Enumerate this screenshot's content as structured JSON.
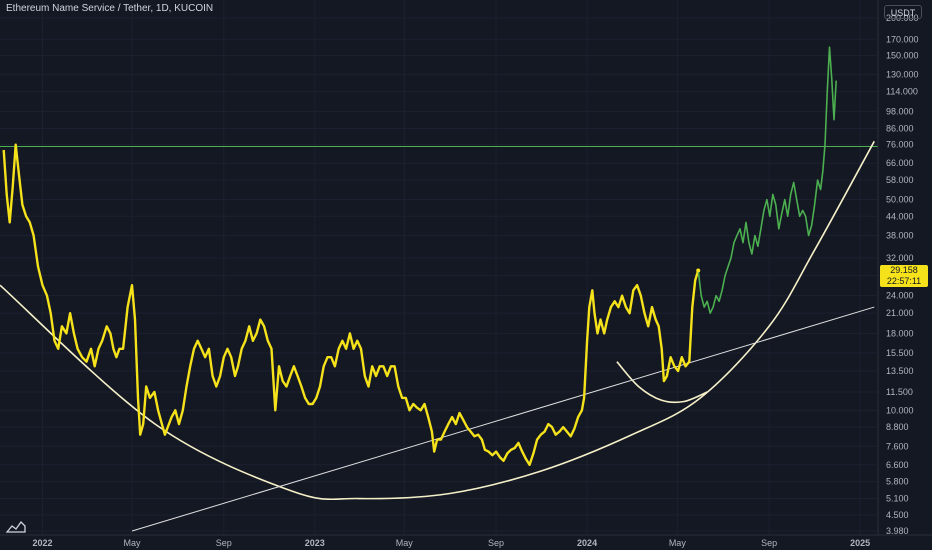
{
  "header": {
    "title": "Ethereum Name Service / Tether, 1D, KUCOIN",
    "currency": "USDT"
  },
  "price_tag": {
    "price": "29.158",
    "countdown": "22:57:11"
  },
  "colors": {
    "background": "#141823",
    "yellow_series": "#f5e21b",
    "green_series": "#4caf50",
    "resistance": "#4caf50",
    "curve": "#f5f0c8",
    "trendline": "#e0e0e0"
  },
  "chart_data": {
    "type": "line",
    "scale": "log",
    "ylim": [
      3.98,
      200
    ],
    "xlim": [
      "2021-11-05",
      "2025-01-25"
    ],
    "y_ticks": [
      "200.000",
      "170.000",
      "150.000",
      "130.000",
      "114.000",
      "98.000",
      "86.000",
      "76.000",
      "66.000",
      "58.000",
      "50.000",
      "44.000",
      "38.000",
      "32.000",
      "28.000",
      "24.000",
      "21.000",
      "18.000",
      "15.500",
      "13.500",
      "11.500",
      "10.000",
      "8.800",
      "7.600",
      "6.600",
      "5.800",
      "5.100",
      "4.500",
      "3.980"
    ],
    "x_ticks": [
      {
        "date": "2022-01-01",
        "label": "2022"
      },
      {
        "date": "2022-05-01",
        "label": "May"
      },
      {
        "date": "2022-09-01",
        "label": "Sep"
      },
      {
        "date": "2023-01-01",
        "label": "2023"
      },
      {
        "date": "2023-05-01",
        "label": "May"
      },
      {
        "date": "2023-09-01",
        "label": "Sep"
      },
      {
        "date": "2024-01-01",
        "label": "2024"
      },
      {
        "date": "2024-05-01",
        "label": "May"
      },
      {
        "date": "2024-09-01",
        "label": "Sep"
      },
      {
        "date": "2025-01-01",
        "label": "2025"
      }
    ],
    "series": [
      {
        "color": "#f5e21b",
        "points": [
          [
            "2021-11-10",
            73
          ],
          [
            "2021-11-14",
            52
          ],
          [
            "2021-11-18",
            42
          ],
          [
            "2021-11-22",
            55
          ],
          [
            "2021-11-26",
            76
          ],
          [
            "2021-11-30",
            62
          ],
          [
            "2021-12-05",
            48
          ],
          [
            "2021-12-10",
            44
          ],
          [
            "2021-12-15",
            42
          ],
          [
            "2021-12-20",
            38
          ],
          [
            "2021-12-26",
            30
          ],
          [
            "2022-01-01",
            26
          ],
          [
            "2022-01-07",
            24
          ],
          [
            "2022-01-12",
            21
          ],
          [
            "2022-01-17",
            17
          ],
          [
            "2022-01-22",
            16
          ],
          [
            "2022-01-27",
            19
          ],
          [
            "2022-02-02",
            18
          ],
          [
            "2022-02-07",
            21
          ],
          [
            "2022-02-12",
            18
          ],
          [
            "2022-02-17",
            16
          ],
          [
            "2022-02-23",
            15
          ],
          [
            "2022-03-01",
            14.5
          ],
          [
            "2022-03-07",
            16
          ],
          [
            "2022-03-12",
            14
          ],
          [
            "2022-03-17",
            16
          ],
          [
            "2022-03-22",
            17
          ],
          [
            "2022-03-28",
            19
          ],
          [
            "2022-04-02",
            18
          ],
          [
            "2022-04-06",
            16
          ],
          [
            "2022-04-10",
            15
          ],
          [
            "2022-04-14",
            16
          ],
          [
            "2022-04-19",
            16
          ],
          [
            "2022-04-25",
            22
          ],
          [
            "2022-05-01",
            26
          ],
          [
            "2022-05-05",
            20
          ],
          [
            "2022-05-09",
            11
          ],
          [
            "2022-05-12",
            8.3
          ],
          [
            "2022-05-16",
            9
          ],
          [
            "2022-05-20",
            12
          ],
          [
            "2022-05-25",
            11
          ],
          [
            "2022-05-31",
            11.5
          ],
          [
            "2022-06-05",
            10
          ],
          [
            "2022-06-10",
            9
          ],
          [
            "2022-06-14",
            8.3
          ],
          [
            "2022-06-18",
            8.8
          ],
          [
            "2022-06-23",
            9.5
          ],
          [
            "2022-06-28",
            10
          ],
          [
            "2022-07-03",
            9
          ],
          [
            "2022-07-08",
            10
          ],
          [
            "2022-07-13",
            12
          ],
          [
            "2022-07-18",
            14
          ],
          [
            "2022-07-23",
            16
          ],
          [
            "2022-07-28",
            17
          ],
          [
            "2022-08-02",
            16
          ],
          [
            "2022-08-07",
            15
          ],
          [
            "2022-08-12",
            16
          ],
          [
            "2022-08-17",
            13
          ],
          [
            "2022-08-22",
            12
          ],
          [
            "2022-08-27",
            13
          ],
          [
            "2022-09-01",
            15
          ],
          [
            "2022-09-06",
            16
          ],
          [
            "2022-09-11",
            15
          ],
          [
            "2022-09-16",
            13
          ],
          [
            "2022-09-20",
            14
          ],
          [
            "2022-09-25",
            16
          ],
          [
            "2022-09-30",
            17
          ],
          [
            "2022-10-05",
            19
          ],
          [
            "2022-10-10",
            17
          ],
          [
            "2022-10-15",
            18
          ],
          [
            "2022-10-20",
            20
          ],
          [
            "2022-10-25",
            19
          ],
          [
            "2022-10-30",
            17
          ],
          [
            "2022-11-04",
            16
          ],
          [
            "2022-11-09",
            10
          ],
          [
            "2022-11-14",
            14
          ],
          [
            "2022-11-19",
            12.5
          ],
          [
            "2022-11-24",
            12
          ],
          [
            "2022-11-29",
            13
          ],
          [
            "2022-12-04",
            14
          ],
          [
            "2022-12-09",
            13
          ],
          [
            "2022-12-14",
            12
          ],
          [
            "2022-12-19",
            11
          ],
          [
            "2022-12-24",
            10.5
          ],
          [
            "2022-12-29",
            10.5
          ],
          [
            "2023-01-03",
            11
          ],
          [
            "2023-01-08",
            12
          ],
          [
            "2023-01-13",
            14
          ],
          [
            "2023-01-18",
            15
          ],
          [
            "2023-01-23",
            15
          ],
          [
            "2023-01-28",
            14
          ],
          [
            "2023-02-02",
            16
          ],
          [
            "2023-02-07",
            17
          ],
          [
            "2023-02-12",
            16
          ],
          [
            "2023-02-17",
            18
          ],
          [
            "2023-02-22",
            16
          ],
          [
            "2023-02-27",
            17
          ],
          [
            "2023-03-04",
            16
          ],
          [
            "2023-03-09",
            13
          ],
          [
            "2023-03-14",
            12
          ],
          [
            "2023-03-19",
            14
          ],
          [
            "2023-03-24",
            13
          ],
          [
            "2023-03-29",
            14
          ],
          [
            "2023-04-03",
            14
          ],
          [
            "2023-04-08",
            13
          ],
          [
            "2023-04-13",
            14
          ],
          [
            "2023-04-18",
            14
          ],
          [
            "2023-04-23",
            12
          ],
          [
            "2023-04-28",
            11
          ],
          [
            "2023-05-03",
            11
          ],
          [
            "2023-05-08",
            10
          ],
          [
            "2023-05-13",
            10.5
          ],
          [
            "2023-05-18",
            10.2
          ],
          [
            "2023-05-23",
            10
          ],
          [
            "2023-05-28",
            10.5
          ],
          [
            "2023-06-02",
            9.5
          ],
          [
            "2023-06-07",
            8.5
          ],
          [
            "2023-06-10",
            7.3
          ],
          [
            "2023-06-14",
            8
          ],
          [
            "2023-06-19",
            8
          ],
          [
            "2023-06-24",
            8.5
          ],
          [
            "2023-06-29",
            9
          ],
          [
            "2023-07-04",
            9.5
          ],
          [
            "2023-07-09",
            9
          ],
          [
            "2023-07-14",
            9.8
          ],
          [
            "2023-07-19",
            9.3
          ],
          [
            "2023-07-24",
            8.8
          ],
          [
            "2023-07-29",
            8.5
          ],
          [
            "2023-08-03",
            8.2
          ],
          [
            "2023-08-08",
            8.3
          ],
          [
            "2023-08-13",
            8
          ],
          [
            "2023-08-17",
            7.4
          ],
          [
            "2023-08-22",
            7.3
          ],
          [
            "2023-08-27",
            7.1
          ],
          [
            "2023-09-01",
            7.3
          ],
          [
            "2023-09-06",
            7.0
          ],
          [
            "2023-09-11",
            6.8
          ],
          [
            "2023-09-16",
            7.2
          ],
          [
            "2023-09-21",
            7.4
          ],
          [
            "2023-09-26",
            7.5
          ],
          [
            "2023-10-01",
            7.8
          ],
          [
            "2023-10-06",
            7.3
          ],
          [
            "2023-10-11",
            6.9
          ],
          [
            "2023-10-16",
            6.6
          ],
          [
            "2023-10-21",
            7.2
          ],
          [
            "2023-10-26",
            8
          ],
          [
            "2023-10-31",
            8.3
          ],
          [
            "2023-11-05",
            8.5
          ],
          [
            "2023-11-10",
            9
          ],
          [
            "2023-11-15",
            8.8
          ],
          [
            "2023-11-20",
            8.3
          ],
          [
            "2023-11-25",
            8.5
          ],
          [
            "2023-11-30",
            8.8
          ],
          [
            "2023-12-05",
            8.5
          ],
          [
            "2023-12-10",
            8.2
          ],
          [
            "2023-12-15",
            8.7
          ],
          [
            "2023-12-20",
            9.5
          ],
          [
            "2023-12-25",
            10
          ],
          [
            "2023-12-28",
            11
          ],
          [
            "2024-01-01",
            17
          ],
          [
            "2024-01-04",
            22
          ],
          [
            "2024-01-08",
            25
          ],
          [
            "2024-01-11",
            21
          ],
          [
            "2024-01-15",
            18
          ],
          [
            "2024-01-19",
            20
          ],
          [
            "2024-01-24",
            18
          ],
          [
            "2024-01-28",
            20
          ],
          [
            "2024-02-02",
            22
          ],
          [
            "2024-02-07",
            23
          ],
          [
            "2024-02-12",
            22
          ],
          [
            "2024-02-17",
            24
          ],
          [
            "2024-02-22",
            22
          ],
          [
            "2024-02-27",
            21
          ],
          [
            "2024-03-03",
            25
          ],
          [
            "2024-03-08",
            26
          ],
          [
            "2024-03-13",
            24
          ],
          [
            "2024-03-18",
            21
          ],
          [
            "2024-03-23",
            19
          ],
          [
            "2024-03-28",
            22
          ],
          [
            "2024-04-02",
            20
          ],
          [
            "2024-04-06",
            19
          ],
          [
            "2024-04-10",
            16
          ],
          [
            "2024-04-13",
            12.5
          ],
          [
            "2024-04-17",
            13
          ],
          [
            "2024-04-22",
            15
          ],
          [
            "2024-04-27",
            14
          ],
          [
            "2024-05-02",
            13.5
          ],
          [
            "2024-05-07",
            15
          ],
          [
            "2024-05-12",
            14
          ],
          [
            "2024-05-17",
            14.5
          ],
          [
            "2024-05-21",
            22
          ],
          [
            "2024-05-25",
            27
          ],
          [
            "2024-05-29",
            29.1
          ]
        ]
      },
      {
        "color": "#4caf50",
        "points": [
          [
            "2024-05-29",
            29.1
          ],
          [
            "2024-06-02",
            24
          ],
          [
            "2024-06-06",
            22
          ],
          [
            "2024-06-10",
            23
          ],
          [
            "2024-06-14",
            21
          ],
          [
            "2024-06-18",
            22
          ],
          [
            "2024-06-22",
            24
          ],
          [
            "2024-06-26",
            23
          ],
          [
            "2024-06-30",
            25
          ],
          [
            "2024-07-04",
            28
          ],
          [
            "2024-07-08",
            30
          ],
          [
            "2024-07-12",
            32
          ],
          [
            "2024-07-16",
            36
          ],
          [
            "2024-07-20",
            38
          ],
          [
            "2024-07-24",
            40
          ],
          [
            "2024-07-28",
            36
          ],
          [
            "2024-08-01",
            42
          ],
          [
            "2024-08-05",
            36
          ],
          [
            "2024-08-09",
            33
          ],
          [
            "2024-08-13",
            38
          ],
          [
            "2024-08-17",
            35
          ],
          [
            "2024-08-21",
            40
          ],
          [
            "2024-08-25",
            46
          ],
          [
            "2024-08-29",
            50
          ],
          [
            "2024-09-02",
            44
          ],
          [
            "2024-09-06",
            52
          ],
          [
            "2024-09-10",
            48
          ],
          [
            "2024-09-14",
            40
          ],
          [
            "2024-09-18",
            45
          ],
          [
            "2024-09-22",
            50
          ],
          [
            "2024-09-26",
            44
          ],
          [
            "2024-09-30",
            52
          ],
          [
            "2024-10-04",
            57
          ],
          [
            "2024-10-08",
            50
          ],
          [
            "2024-10-12",
            44
          ],
          [
            "2024-10-16",
            46
          ],
          [
            "2024-10-20",
            44
          ],
          [
            "2024-10-24",
            38
          ],
          [
            "2024-10-28",
            41
          ],
          [
            "2024-11-01",
            48
          ],
          [
            "2024-11-05",
            58
          ],
          [
            "2024-11-09",
            54
          ],
          [
            "2024-11-12",
            62
          ],
          [
            "2024-11-15",
            76
          ],
          [
            "2024-11-18",
            115
          ],
          [
            "2024-11-21",
            160
          ],
          [
            "2024-11-24",
            125
          ],
          [
            "2024-11-27",
            92
          ],
          [
            "2024-11-30",
            124
          ]
        ]
      }
    ],
    "annotations": [
      {
        "type": "horizontal_line",
        "y": 75,
        "color": "#4caf50"
      },
      {
        "type": "curve",
        "points": [
          [
            "2021-11-05",
            26
          ],
          [
            "2022-06-01",
            9
          ],
          [
            "2022-12-01",
            5.4
          ],
          [
            "2023-03-01",
            5.1
          ],
          [
            "2023-07-01",
            5.3
          ],
          [
            "2023-11-01",
            6.3
          ],
          [
            "2024-03-01",
            8.3
          ],
          [
            "2024-06-01",
            11
          ],
          [
            "2024-09-01",
            19
          ],
          [
            "2024-11-01",
            34
          ],
          [
            "2025-01-20",
            78
          ]
        ]
      },
      {
        "type": "curve",
        "points": [
          [
            "2024-02-10",
            14.5
          ],
          [
            "2024-03-10",
            12
          ],
          [
            "2024-04-10",
            10.8
          ],
          [
            "2024-05-10",
            10.7
          ],
          [
            "2024-06-10",
            11.5
          ]
        ]
      },
      {
        "type": "trendline",
        "points": [
          [
            "2022-05-01",
            3.98
          ],
          [
            "2025-01-20",
            22
          ]
        ]
      }
    ]
  }
}
